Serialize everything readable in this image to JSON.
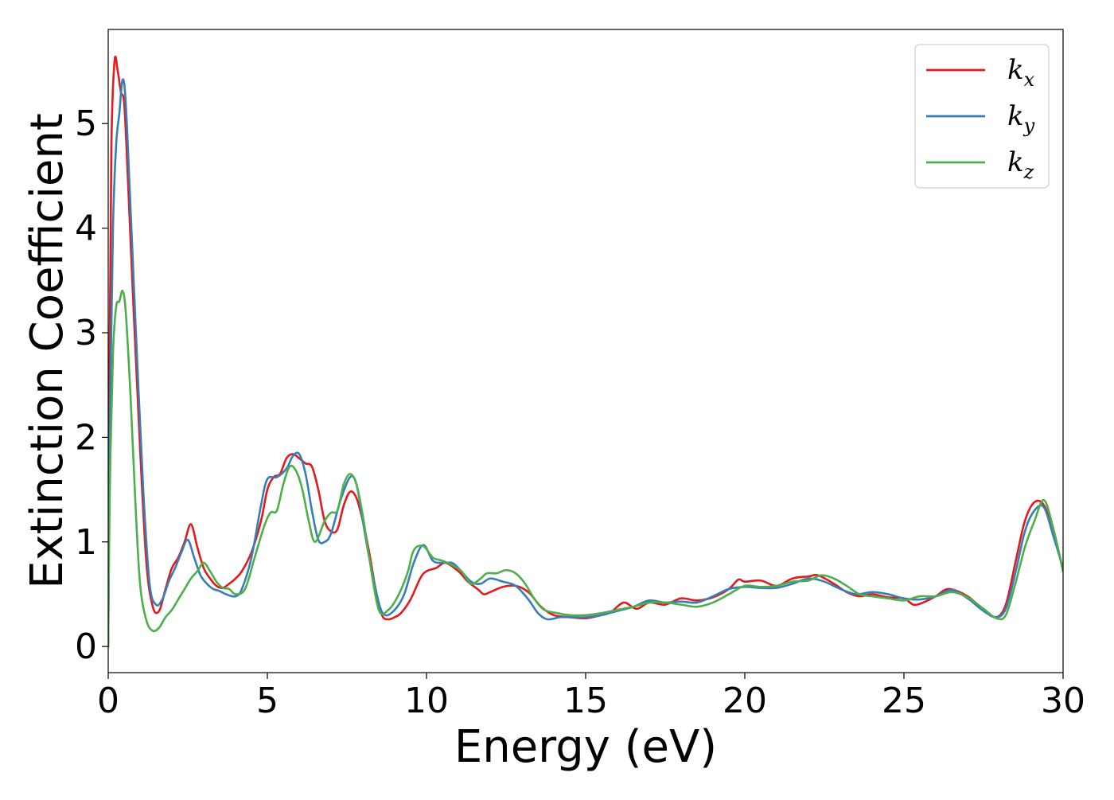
{
  "chart_data": {
    "type": "line",
    "title": "",
    "xlabel": "Energy (eV)",
    "ylabel": "Extinction Coefficient",
    "xlim": [
      0,
      30
    ],
    "ylim": [
      -0.25,
      5.9
    ],
    "xticks": [
      0,
      5,
      10,
      15,
      20,
      25,
      30
    ],
    "yticks": [
      0,
      1,
      2,
      3,
      4,
      5
    ],
    "grid": false,
    "legend_position": "top-right",
    "series": [
      {
        "name": "k",
        "subscript": "x",
        "color": "#e41a1c",
        "points": [
          [
            0,
            0
          ],
          [
            0.05,
            3.0
          ],
          [
            0.1,
            4.8
          ],
          [
            0.2,
            5.6
          ],
          [
            0.3,
            5.5
          ],
          [
            0.4,
            5.3
          ],
          [
            0.5,
            5.2
          ],
          [
            0.6,
            4.6
          ],
          [
            0.8,
            3.2
          ],
          [
            1.0,
            1.9
          ],
          [
            1.2,
            0.8
          ],
          [
            1.4,
            0.38
          ],
          [
            1.6,
            0.34
          ],
          [
            1.8,
            0.55
          ],
          [
            2.0,
            0.75
          ],
          [
            2.2,
            0.85
          ],
          [
            2.4,
            1.0
          ],
          [
            2.6,
            1.17
          ],
          [
            2.8,
            0.95
          ],
          [
            3.0,
            0.75
          ],
          [
            3.2,
            0.65
          ],
          [
            3.4,
            0.58
          ],
          [
            3.6,
            0.56
          ],
          [
            3.8,
            0.6
          ],
          [
            4.0,
            0.65
          ],
          [
            4.2,
            0.72
          ],
          [
            4.5,
            0.9
          ],
          [
            4.8,
            1.2
          ],
          [
            5.0,
            1.5
          ],
          [
            5.2,
            1.62
          ],
          [
            5.4,
            1.65
          ],
          [
            5.6,
            1.8
          ],
          [
            5.8,
            1.84
          ],
          [
            6.0,
            1.8
          ],
          [
            6.2,
            1.75
          ],
          [
            6.4,
            1.72
          ],
          [
            6.6,
            1.5
          ],
          [
            6.8,
            1.2
          ],
          [
            7.0,
            1.1
          ],
          [
            7.2,
            1.12
          ],
          [
            7.4,
            1.35
          ],
          [
            7.6,
            1.48
          ],
          [
            7.8,
            1.42
          ],
          [
            8.0,
            1.2
          ],
          [
            8.2,
            0.9
          ],
          [
            8.4,
            0.55
          ],
          [
            8.6,
            0.3
          ],
          [
            8.8,
            0.26
          ],
          [
            9.0,
            0.28
          ],
          [
            9.2,
            0.32
          ],
          [
            9.5,
            0.45
          ],
          [
            9.8,
            0.65
          ],
          [
            10.0,
            0.72
          ],
          [
            10.3,
            0.75
          ],
          [
            10.6,
            0.8
          ],
          [
            11.0,
            0.72
          ],
          [
            11.3,
            0.62
          ],
          [
            11.6,
            0.55
          ],
          [
            11.8,
            0.5
          ],
          [
            12.0,
            0.52
          ],
          [
            12.4,
            0.57
          ],
          [
            12.8,
            0.58
          ],
          [
            13.2,
            0.52
          ],
          [
            13.6,
            0.38
          ],
          [
            14.0,
            0.3
          ],
          [
            14.5,
            0.28
          ],
          [
            15.0,
            0.27
          ],
          [
            15.5,
            0.3
          ],
          [
            15.8,
            0.33
          ],
          [
            16.2,
            0.42
          ],
          [
            16.6,
            0.36
          ],
          [
            17.0,
            0.42
          ],
          [
            17.5,
            0.4
          ],
          [
            18.0,
            0.46
          ],
          [
            18.5,
            0.44
          ],
          [
            19.0,
            0.47
          ],
          [
            19.5,
            0.55
          ],
          [
            19.8,
            0.64
          ],
          [
            20.0,
            0.62
          ],
          [
            20.5,
            0.63
          ],
          [
            21.0,
            0.58
          ],
          [
            21.5,
            0.65
          ],
          [
            22.0,
            0.67
          ],
          [
            22.3,
            0.68
          ],
          [
            22.8,
            0.6
          ],
          [
            23.2,
            0.52
          ],
          [
            23.6,
            0.48
          ],
          [
            24.0,
            0.5
          ],
          [
            24.5,
            0.47
          ],
          [
            25.0,
            0.46
          ],
          [
            25.3,
            0.4
          ],
          [
            25.6,
            0.42
          ],
          [
            26.0,
            0.48
          ],
          [
            26.4,
            0.55
          ],
          [
            27.0,
            0.48
          ],
          [
            27.5,
            0.35
          ],
          [
            27.9,
            0.28
          ],
          [
            28.2,
            0.4
          ],
          [
            28.5,
            0.8
          ],
          [
            28.8,
            1.2
          ],
          [
            29.1,
            1.38
          ],
          [
            29.4,
            1.35
          ],
          [
            29.7,
            1.1
          ],
          [
            30.0,
            0.72
          ]
        ]
      },
      {
        "name": "k",
        "subscript": "y",
        "color": "#377eb8",
        "points": [
          [
            0,
            0
          ],
          [
            0.05,
            2.0
          ],
          [
            0.15,
            4.0
          ],
          [
            0.25,
            4.8
          ],
          [
            0.35,
            5.1
          ],
          [
            0.45,
            5.42
          ],
          [
            0.55,
            5.2
          ],
          [
            0.7,
            4.2
          ],
          [
            0.9,
            2.8
          ],
          [
            1.1,
            1.5
          ],
          [
            1.3,
            0.6
          ],
          [
            1.5,
            0.4
          ],
          [
            1.7,
            0.45
          ],
          [
            1.9,
            0.62
          ],
          [
            2.1,
            0.75
          ],
          [
            2.3,
            0.9
          ],
          [
            2.5,
            1.02
          ],
          [
            2.7,
            0.85
          ],
          [
            2.9,
            0.68
          ],
          [
            3.1,
            0.6
          ],
          [
            3.3,
            0.55
          ],
          [
            3.5,
            0.53
          ],
          [
            3.7,
            0.5
          ],
          [
            4.0,
            0.48
          ],
          [
            4.2,
            0.55
          ],
          [
            4.5,
            0.85
          ],
          [
            4.8,
            1.35
          ],
          [
            5.0,
            1.6
          ],
          [
            5.3,
            1.62
          ],
          [
            5.6,
            1.7
          ],
          [
            5.8,
            1.82
          ],
          [
            6.0,
            1.84
          ],
          [
            6.2,
            1.65
          ],
          [
            6.4,
            1.3
          ],
          [
            6.6,
            1.02
          ],
          [
            6.8,
            1.0
          ],
          [
            7.0,
            1.08
          ],
          [
            7.3,
            1.4
          ],
          [
            7.6,
            1.62
          ],
          [
            7.8,
            1.55
          ],
          [
            8.0,
            1.2
          ],
          [
            8.2,
            0.85
          ],
          [
            8.5,
            0.42
          ],
          [
            8.7,
            0.3
          ],
          [
            9.0,
            0.35
          ],
          [
            9.3,
            0.5
          ],
          [
            9.6,
            0.8
          ],
          [
            9.9,
            0.97
          ],
          [
            10.2,
            0.82
          ],
          [
            10.5,
            0.8
          ],
          [
            10.8,
            0.8
          ],
          [
            11.0,
            0.75
          ],
          [
            11.4,
            0.62
          ],
          [
            11.7,
            0.6
          ],
          [
            12.0,
            0.65
          ],
          [
            12.4,
            0.62
          ],
          [
            12.8,
            0.58
          ],
          [
            13.2,
            0.45
          ],
          [
            13.5,
            0.32
          ],
          [
            13.8,
            0.26
          ],
          [
            14.2,
            0.28
          ],
          [
            14.6,
            0.28
          ],
          [
            15.0,
            0.28
          ],
          [
            15.5,
            0.3
          ],
          [
            16.0,
            0.34
          ],
          [
            16.5,
            0.38
          ],
          [
            17.0,
            0.44
          ],
          [
            17.5,
            0.42
          ],
          [
            18.0,
            0.43
          ],
          [
            18.5,
            0.42
          ],
          [
            19.0,
            0.48
          ],
          [
            19.5,
            0.55
          ],
          [
            20.0,
            0.57
          ],
          [
            20.5,
            0.56
          ],
          [
            21.0,
            0.56
          ],
          [
            21.5,
            0.6
          ],
          [
            22.0,
            0.65
          ],
          [
            22.5,
            0.62
          ],
          [
            23.0,
            0.55
          ],
          [
            23.5,
            0.5
          ],
          [
            24.0,
            0.52
          ],
          [
            24.5,
            0.5
          ],
          [
            25.0,
            0.46
          ],
          [
            25.5,
            0.45
          ],
          [
            26.0,
            0.48
          ],
          [
            26.5,
            0.54
          ],
          [
            27.0,
            0.46
          ],
          [
            27.5,
            0.34
          ],
          [
            27.9,
            0.28
          ],
          [
            28.2,
            0.36
          ],
          [
            28.5,
            0.7
          ],
          [
            28.8,
            1.1
          ],
          [
            29.1,
            1.3
          ],
          [
            29.4,
            1.33
          ],
          [
            29.7,
            1.05
          ],
          [
            30.0,
            0.75
          ]
        ]
      },
      {
        "name": "k",
        "subscript": "z",
        "color": "#4daf4a",
        "points": [
          [
            0,
            0
          ],
          [
            0.05,
            1.5
          ],
          [
            0.15,
            2.8
          ],
          [
            0.25,
            3.25
          ],
          [
            0.35,
            3.3
          ],
          [
            0.45,
            3.4
          ],
          [
            0.55,
            3.2
          ],
          [
            0.7,
            2.4
          ],
          [
            0.85,
            1.4
          ],
          [
            1.0,
            0.6
          ],
          [
            1.2,
            0.25
          ],
          [
            1.4,
            0.15
          ],
          [
            1.6,
            0.18
          ],
          [
            1.8,
            0.28
          ],
          [
            2.0,
            0.35
          ],
          [
            2.2,
            0.45
          ],
          [
            2.4,
            0.55
          ],
          [
            2.6,
            0.65
          ],
          [
            2.8,
            0.72
          ],
          [
            3.0,
            0.8
          ],
          [
            3.2,
            0.72
          ],
          [
            3.4,
            0.62
          ],
          [
            3.6,
            0.56
          ],
          [
            3.8,
            0.55
          ],
          [
            4.0,
            0.5
          ],
          [
            4.3,
            0.55
          ],
          [
            4.6,
            0.85
          ],
          [
            4.9,
            1.15
          ],
          [
            5.1,
            1.28
          ],
          [
            5.3,
            1.3
          ],
          [
            5.5,
            1.55
          ],
          [
            5.7,
            1.72
          ],
          [
            5.9,
            1.68
          ],
          [
            6.1,
            1.5
          ],
          [
            6.3,
            1.2
          ],
          [
            6.5,
            1.0
          ],
          [
            6.8,
            1.2
          ],
          [
            7.0,
            1.28
          ],
          [
            7.2,
            1.3
          ],
          [
            7.4,
            1.55
          ],
          [
            7.6,
            1.65
          ],
          [
            7.8,
            1.55
          ],
          [
            8.0,
            1.25
          ],
          [
            8.2,
            0.85
          ],
          [
            8.5,
            0.35
          ],
          [
            8.8,
            0.35
          ],
          [
            9.1,
            0.48
          ],
          [
            9.4,
            0.7
          ],
          [
            9.6,
            0.92
          ],
          [
            9.9,
            0.96
          ],
          [
            10.2,
            0.85
          ],
          [
            10.5,
            0.82
          ],
          [
            10.8,
            0.78
          ],
          [
            11.1,
            0.72
          ],
          [
            11.4,
            0.6
          ],
          [
            11.7,
            0.65
          ],
          [
            11.9,
            0.7
          ],
          [
            12.2,
            0.7
          ],
          [
            12.5,
            0.73
          ],
          [
            12.8,
            0.7
          ],
          [
            13.1,
            0.6
          ],
          [
            13.4,
            0.45
          ],
          [
            13.7,
            0.35
          ],
          [
            14.1,
            0.32
          ],
          [
            14.5,
            0.3
          ],
          [
            15.0,
            0.3
          ],
          [
            15.5,
            0.32
          ],
          [
            16.0,
            0.35
          ],
          [
            16.5,
            0.38
          ],
          [
            17.0,
            0.42
          ],
          [
            17.5,
            0.42
          ],
          [
            18.0,
            0.4
          ],
          [
            18.5,
            0.38
          ],
          [
            19.0,
            0.42
          ],
          [
            19.5,
            0.5
          ],
          [
            20.0,
            0.58
          ],
          [
            20.5,
            0.57
          ],
          [
            21.0,
            0.58
          ],
          [
            21.5,
            0.62
          ],
          [
            22.0,
            0.63
          ],
          [
            22.4,
            0.68
          ],
          [
            22.8,
            0.65
          ],
          [
            23.2,
            0.58
          ],
          [
            23.6,
            0.5
          ],
          [
            24.0,
            0.48
          ],
          [
            24.5,
            0.46
          ],
          [
            25.0,
            0.44
          ],
          [
            25.5,
            0.48
          ],
          [
            26.0,
            0.48
          ],
          [
            26.5,
            0.52
          ],
          [
            27.0,
            0.47
          ],
          [
            27.5,
            0.36
          ],
          [
            27.9,
            0.27
          ],
          [
            28.2,
            0.3
          ],
          [
            28.5,
            0.6
          ],
          [
            28.8,
            0.95
          ],
          [
            29.1,
            1.2
          ],
          [
            29.4,
            1.4
          ],
          [
            29.7,
            1.12
          ],
          [
            30.0,
            0.72
          ]
        ]
      }
    ]
  }
}
